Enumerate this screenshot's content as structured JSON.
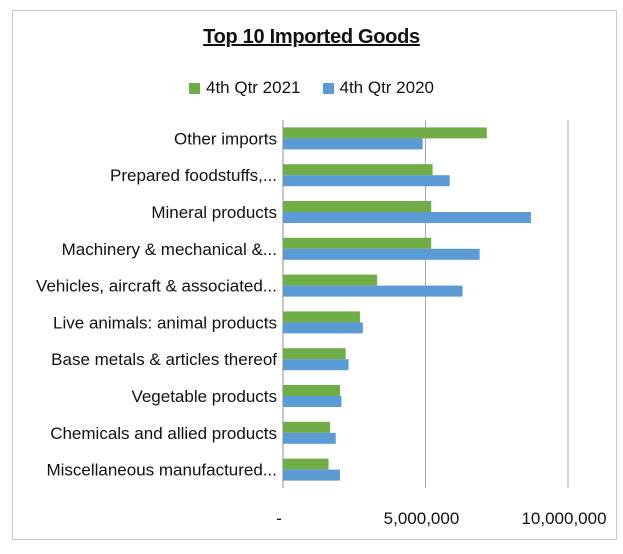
{
  "chart_data": {
    "type": "bar",
    "orientation": "horizontal",
    "title": "Top 10 Imported Goods",
    "categories": [
      "Other imports",
      "Prepared foodstuffs,...",
      "Mineral products",
      "Machinery & mechanical &...",
      "Vehicles, aircraft & associated...",
      "Live animals: animal products",
      "Base metals & articles thereof",
      "Vegetable products",
      "Chemicals and allied products",
      "Miscellaneous manufactured..."
    ],
    "series": [
      {
        "name": "4th Qtr 2021",
        "color": "#70ad47",
        "values": [
          7150000,
          5250000,
          5200000,
          5200000,
          3300000,
          2700000,
          2200000,
          2000000,
          1650000,
          1600000
        ]
      },
      {
        "name": "4th Qtr 2020",
        "color": "#5b9bd5",
        "values": [
          4900000,
          5850000,
          8700000,
          6900000,
          6300000,
          2800000,
          2300000,
          2050000,
          1850000,
          2000000
        ]
      }
    ],
    "xlim": [
      0,
      10000000
    ],
    "xticks": [
      0,
      5000000,
      10000000
    ],
    "xtick_labels": [
      "-",
      "5,000,000",
      "10,000,000"
    ],
    "grid": "vertical",
    "legend": "top-center"
  }
}
